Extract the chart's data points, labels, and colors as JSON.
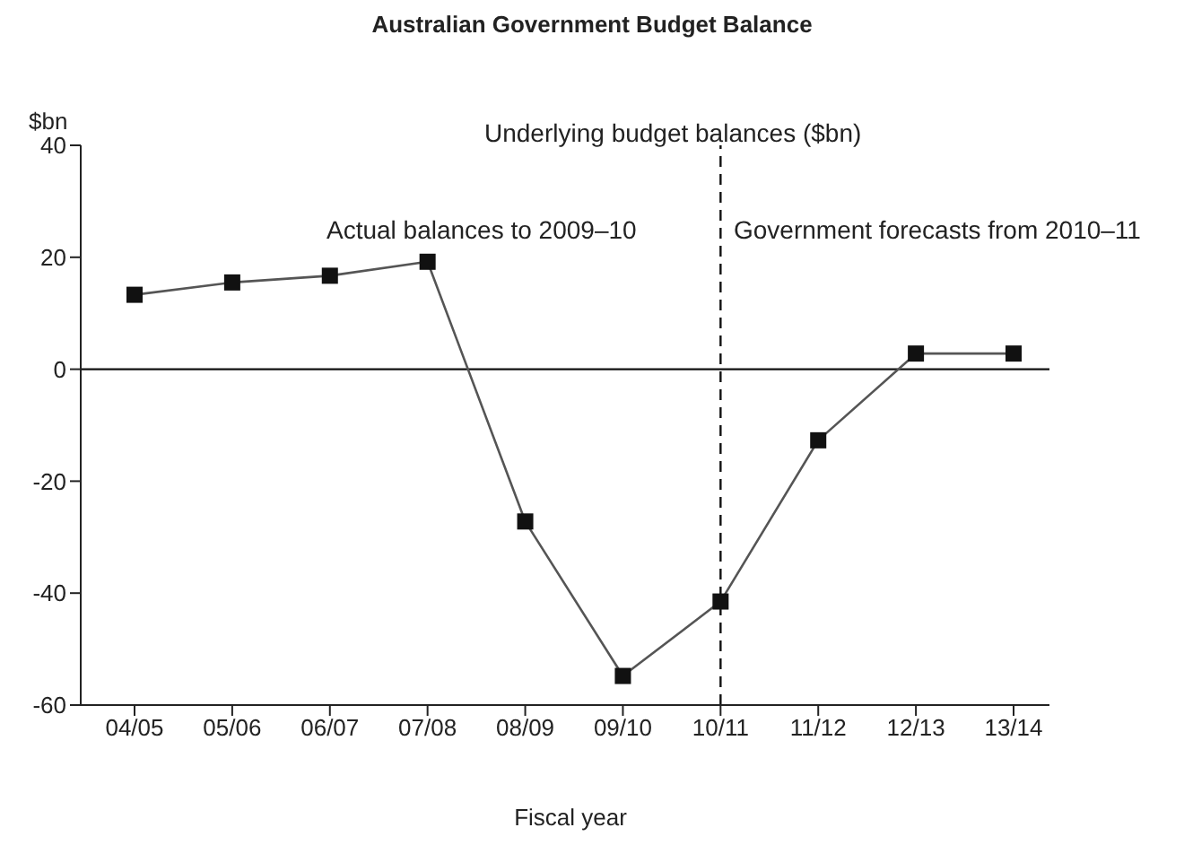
{
  "chart_data": {
    "type": "line",
    "title": "Australian Government Budget Balance",
    "subtitle": "Underlying budget balances ($bn)",
    "xlabel": "Fiscal year",
    "ylabel": "$bn",
    "categories": [
      "04/05",
      "05/06",
      "06/07",
      "07/08",
      "08/09",
      "09/10",
      "10/11",
      "11/12",
      "12/13",
      "13/14"
    ],
    "series": [
      {
        "color": "#555555",
        "values": [
          13.3,
          15.5,
          16.7,
          19.2,
          -27.2,
          -54.8,
          -41.5,
          -12.7,
          2.8,
          2.8
        ]
      }
    ],
    "ylim": [
      -60,
      40
    ],
    "yticks": [
      40,
      20,
      0,
      -20,
      -40,
      -60
    ],
    "ref_lines": [
      {
        "axis": "y",
        "value": 0,
        "color": "#111111",
        "line_style": "solid"
      },
      {
        "axis": "x",
        "value": "10/11",
        "color": "#111111",
        "line_style": "dashed"
      }
    ],
    "annotations": [
      "Actual balances to 2009–10",
      "Government forecasts from 2010–11"
    ],
    "marker": "square",
    "line_style": "solid",
    "grid": false,
    "legend": false
  }
}
